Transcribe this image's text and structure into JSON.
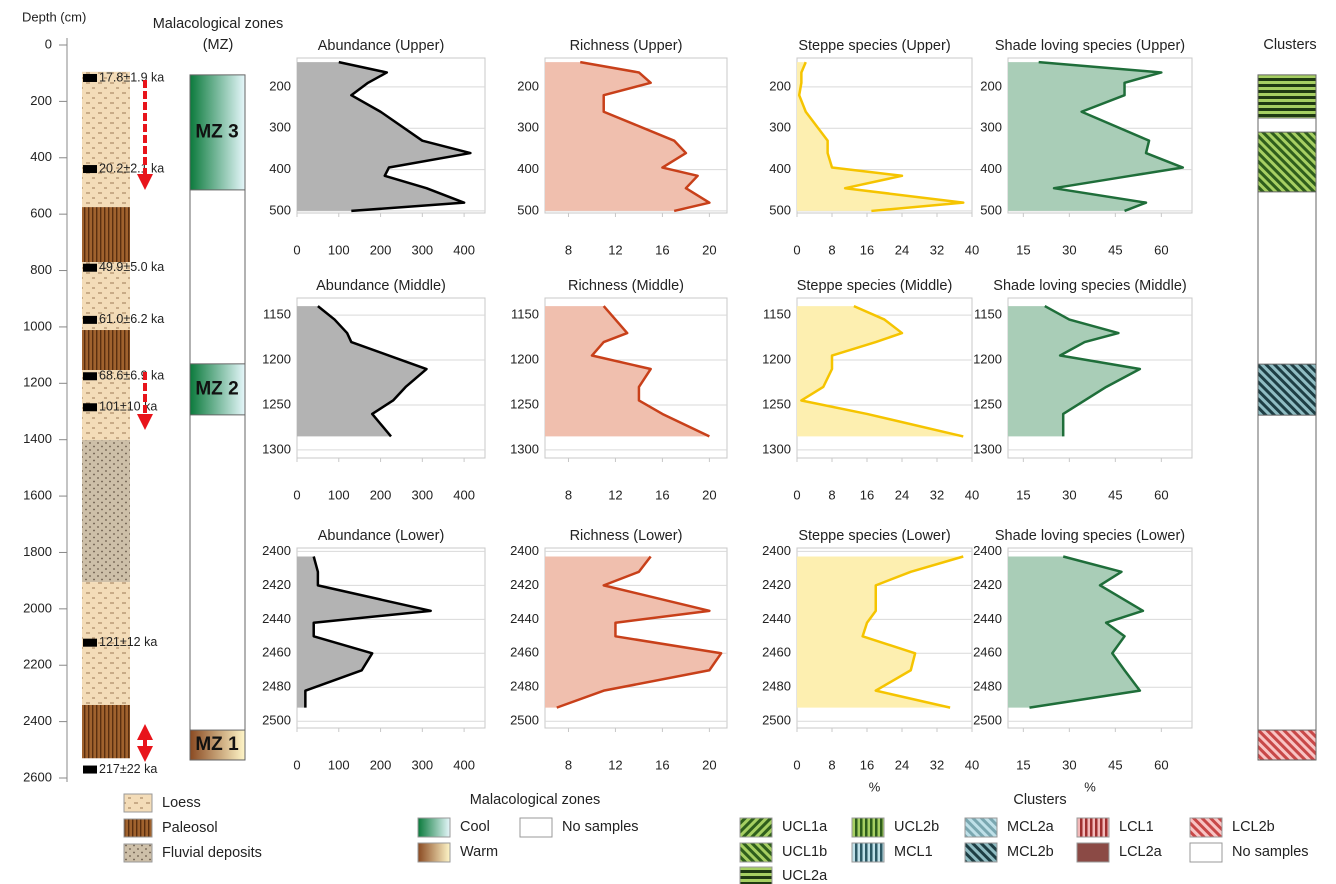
{
  "depth_column": {
    "title": "Depth (cm)",
    "ylim": [
      0,
      2600
    ],
    "yticks": [
      0,
      200,
      400,
      600,
      800,
      1000,
      1200,
      1400,
      1600,
      1800,
      2000,
      2200,
      2400,
      2600
    ],
    "layers": [
      {
        "top": 95,
        "bottom": 575,
        "pattern": "loess"
      },
      {
        "top": 575,
        "bottom": 770,
        "pattern": "paleosol"
      },
      {
        "top": 770,
        "bottom": 1011,
        "pattern": "loess"
      },
      {
        "top": 1011,
        "bottom": 1153,
        "pattern": "paleosol"
      },
      {
        "top": 1153,
        "bottom": 1401,
        "pattern": "loess"
      },
      {
        "top": 1401,
        "bottom": 1905,
        "pattern": "fluvial"
      },
      {
        "top": 1905,
        "bottom": 2341,
        "pattern": "loess"
      },
      {
        "top": 2341,
        "bottom": 2530,
        "pattern": "paleosol"
      }
    ],
    "dates": [
      {
        "label": "17.8±1.9 ka",
        "depth": 117
      },
      {
        "label": "20.2±2.1 ka",
        "depth": 440
      },
      {
        "label": "49.9±5.0 ka",
        "depth": 790
      },
      {
        "label": "61.0±6.2 ka",
        "depth": 975
      },
      {
        "label": "68.6±6.9 ka",
        "depth": 1175
      },
      {
        "label": "101±10 ka",
        "depth": 1285
      },
      {
        "label": "121±12 ka",
        "depth": 2120
      },
      {
        "label": "217±22 ka",
        "depth": 2570
      }
    ]
  },
  "mz_column": {
    "title": [
      "Malacological zones",
      "(MZ)"
    ],
    "zones": [
      {
        "label": "MZ 3",
        "top": 106,
        "bottom": 514,
        "colors": [
          "#0b7a3c",
          "#e6f7fb"
        ]
      },
      {
        "label": "MZ 2",
        "top": 1131,
        "bottom": 1312,
        "colors": [
          "#0b7a3c",
          "#e6f7fb"
        ]
      },
      {
        "label": "MZ 1",
        "top": 2430,
        "bottom": 2536,
        "colors": [
          "#8a4a22",
          "#fff6c8"
        ]
      }
    ]
  },
  "clusters_column": {
    "title": "Clusters",
    "segments": [
      {
        "top": 106,
        "bottom": 259,
        "pattern": "ucl2a"
      },
      {
        "top": 309,
        "bottom": 521,
        "pattern": "ucl1b"
      },
      {
        "top": 1132,
        "bottom": 1313,
        "pattern": "mcl2b"
      },
      {
        "top": 2430,
        "bottom": 2536,
        "pattern": "lcl2b"
      }
    ]
  },
  "chart_data": [
    {
      "type": "area",
      "title": "Abundance (Upper)",
      "depth": [
        140,
        165,
        190,
        220,
        260,
        330,
        360,
        395,
        415,
        445,
        480,
        500
      ],
      "values": [
        100,
        215,
        170,
        130,
        200,
        300,
        415,
        220,
        210,
        310,
        400,
        130
      ],
      "xlim": [
        0,
        450
      ],
      "xticks": [
        0,
        100,
        200,
        300,
        400
      ],
      "ylim": [
        130,
        505
      ],
      "yticks": [
        200,
        300,
        400,
        500
      ],
      "color": "#000000",
      "fill": "#b3b3b3"
    },
    {
      "type": "area",
      "title": "Richness (Upper)",
      "depth": [
        140,
        165,
        190,
        220,
        260,
        330,
        360,
        395,
        415,
        445,
        480,
        500
      ],
      "values": [
        9,
        14,
        15,
        11,
        11,
        17,
        18,
        16,
        19,
        18,
        20,
        17
      ],
      "xlim": [
        6,
        21.5
      ],
      "xticks": [
        8,
        12,
        16,
        20
      ],
      "ylim": [
        130,
        505
      ],
      "yticks": [
        200,
        300,
        400,
        500
      ],
      "color": "#c8401a",
      "fill": "#f0bfae"
    },
    {
      "type": "area",
      "title": "Steppe species (Upper)",
      "depth": [
        140,
        165,
        190,
        220,
        260,
        330,
        360,
        395,
        415,
        445,
        480,
        500
      ],
      "values": [
        2,
        1,
        1,
        0.5,
        2,
        7,
        7,
        8,
        24,
        11,
        38,
        17
      ],
      "xlim": [
        0,
        40
      ],
      "xticks": [
        0,
        8,
        16,
        24,
        32,
        40
      ],
      "ylim": [
        130,
        505
      ],
      "yticks": [
        200,
        300,
        400,
        500
      ],
      "color": "#f5c400",
      "fill": "#fdefb0"
    },
    {
      "type": "area",
      "title": "Shade loving species (Upper)",
      "depth": [
        140,
        165,
        190,
        220,
        260,
        330,
        360,
        395,
        415,
        445,
        480,
        500
      ],
      "values": [
        20,
        60,
        48,
        48,
        34,
        56,
        55,
        67,
        50,
        25,
        55,
        48
      ],
      "xlim": [
        10,
        70
      ],
      "xticks": [
        15,
        30,
        45,
        60
      ],
      "ylim": [
        130,
        505
      ],
      "yticks": [
        200,
        300,
        400,
        500
      ],
      "color": "#1f6e3a",
      "fill": "#a9cdb7"
    },
    {
      "type": "area",
      "title": "Abundance (Middle)",
      "depth": [
        1140,
        1155,
        1170,
        1180,
        1195,
        1210,
        1230,
        1245,
        1260,
        1285
      ],
      "values": [
        50,
        90,
        120,
        130,
        220,
        310,
        260,
        230,
        180,
        225
      ],
      "xlim": [
        0,
        450
      ],
      "xticks": [
        0,
        100,
        200,
        300,
        400
      ],
      "ylim": [
        1131,
        1309
      ],
      "yticks": [
        1150,
        1200,
        1250,
        1300
      ],
      "color": "#000000",
      "fill": "#b3b3b3"
    },
    {
      "type": "area",
      "title": "Richness (Middle)",
      "depth": [
        1140,
        1155,
        1170,
        1180,
        1195,
        1210,
        1230,
        1245,
        1260,
        1285
      ],
      "values": [
        11,
        12,
        13,
        11,
        10,
        15,
        14,
        14,
        16,
        20
      ],
      "xlim": [
        6,
        21.5
      ],
      "xticks": [
        8,
        12,
        16,
        20
      ],
      "ylim": [
        1131,
        1309
      ],
      "yticks": [
        1150,
        1200,
        1250,
        1300
      ],
      "color": "#c8401a",
      "fill": "#f0bfae"
    },
    {
      "type": "area",
      "title": "Steppe species (Middle)",
      "depth": [
        1140,
        1155,
        1170,
        1180,
        1195,
        1210,
        1230,
        1245,
        1260,
        1285
      ],
      "values": [
        13,
        20,
        24,
        18,
        8,
        8,
        6,
        1,
        16,
        38
      ],
      "xlim": [
        0,
        40
      ],
      "xticks": [
        0,
        8,
        16,
        24,
        32,
        40
      ],
      "ylim": [
        1131,
        1309
      ],
      "yticks": [
        1150,
        1200,
        1250,
        1300
      ],
      "color": "#f5c400",
      "fill": "#fdefb0"
    },
    {
      "type": "area",
      "title": "Shade loving species (Middle)",
      "depth": [
        1140,
        1155,
        1170,
        1180,
        1195,
        1210,
        1230,
        1245,
        1260,
        1285
      ],
      "values": [
        22,
        30,
        46,
        35,
        27,
        53,
        42,
        35,
        28,
        28
      ],
      "xlim": [
        10,
        70
      ],
      "xticks": [
        15,
        30,
        45,
        60
      ],
      "ylim": [
        1131,
        1309
      ],
      "yticks": [
        1150,
        1200,
        1250,
        1300
      ],
      "color": "#1f6e3a",
      "fill": "#a9cdb7"
    },
    {
      "type": "area",
      "title": "Abundance (Lower)",
      "depth": [
        2403,
        2412,
        2420,
        2435,
        2442,
        2450,
        2460,
        2470,
        2482,
        2492
      ],
      "values": [
        40,
        50,
        50,
        320,
        40,
        40,
        180,
        155,
        20,
        20
      ],
      "xlim": [
        0,
        450
      ],
      "xticks": [
        0,
        100,
        200,
        300,
        400
      ],
      "ylim": [
        2398,
        2504
      ],
      "yticks": [
        2400,
        2420,
        2440,
        2460,
        2480,
        2500
      ],
      "color": "#000000",
      "fill": "#b3b3b3"
    },
    {
      "type": "area",
      "title": "Richness (Lower)",
      "depth": [
        2403,
        2412,
        2420,
        2435,
        2442,
        2450,
        2460,
        2470,
        2482,
        2492
      ],
      "values": [
        15,
        14,
        11,
        20,
        12,
        12,
        21,
        20,
        11,
        7
      ],
      "xlim": [
        6,
        21.5
      ],
      "xticks": [
        8,
        12,
        16,
        20
      ],
      "ylim": [
        2398,
        2504
      ],
      "yticks": [
        2400,
        2420,
        2440,
        2460,
        2480,
        2500
      ],
      "color": "#c8401a",
      "fill": "#f0bfae"
    },
    {
      "type": "area",
      "title": "Steppe species (Lower)",
      "depth": [
        2403,
        2412,
        2420,
        2435,
        2442,
        2450,
        2460,
        2470,
        2482,
        2492
      ],
      "values": [
        38,
        26,
        18,
        18,
        16,
        15,
        27,
        26,
        18,
        35
      ],
      "xlim": [
        0,
        40
      ],
      "xticks": [
        0,
        8,
        16,
        24,
        32,
        40
      ],
      "ylim": [
        2398,
        2504
      ],
      "yticks": [
        2400,
        2420,
        2440,
        2460,
        2480,
        2500
      ],
      "xlabel": "%",
      "color": "#f5c400",
      "fill": "#fdefb0"
    },
    {
      "type": "area",
      "title": "Shade loving species (Lower)",
      "depth": [
        2403,
        2412,
        2420,
        2435,
        2442,
        2450,
        2460,
        2470,
        2482,
        2492
      ],
      "values": [
        28,
        47,
        40,
        54,
        42,
        48,
        44,
        48,
        53,
        17
      ],
      "xlim": [
        10,
        70
      ],
      "xticks": [
        15,
        30,
        45,
        60
      ],
      "ylim": [
        2398,
        2504
      ],
      "yticks": [
        2400,
        2420,
        2440,
        2460,
        2480,
        2500
      ],
      "xlabel": "%",
      "color": "#1f6e3a",
      "fill": "#a9cdb7"
    }
  ],
  "legends": {
    "lithology": [
      {
        "label": "Loess",
        "pattern": "loess"
      },
      {
        "label": "Paleosol",
        "pattern": "paleosol"
      },
      {
        "label": "Fluvial deposits",
        "pattern": "fluvial"
      }
    ],
    "zones": {
      "title": "Malacological zones",
      "items": [
        {
          "label": "Cool",
          "colors": [
            "#0b7a3c",
            "#e6f7fb"
          ]
        },
        {
          "label": "No samples",
          "colors": [
            "#ffffff",
            "#ffffff"
          ]
        },
        {
          "label": "Warm",
          "colors": [
            "#8a4a22",
            "#fff6c8"
          ]
        }
      ]
    },
    "clusters": {
      "title": "Clusters",
      "items": [
        {
          "label": "UCL1a",
          "pattern": "ucl1a"
        },
        {
          "label": "UCL1b",
          "pattern": "ucl1b"
        },
        {
          "label": "UCL2a",
          "pattern": "ucl2a"
        },
        {
          "label": "UCL2b",
          "pattern": "ucl2b"
        },
        {
          "label": "MCL1",
          "pattern": "mcl1"
        },
        {
          "label": "MCL2a",
          "pattern": "mcl2a"
        },
        {
          "label": "MCL2b",
          "pattern": "mcl2b"
        },
        {
          "label": "LCL1",
          "pattern": "lcl1"
        },
        {
          "label": "LCL2a",
          "pattern": "lcl2a"
        },
        {
          "label": "LCL2b",
          "pattern": "lcl2b"
        },
        {
          "label": "No samples",
          "pattern": "none"
        }
      ]
    }
  }
}
